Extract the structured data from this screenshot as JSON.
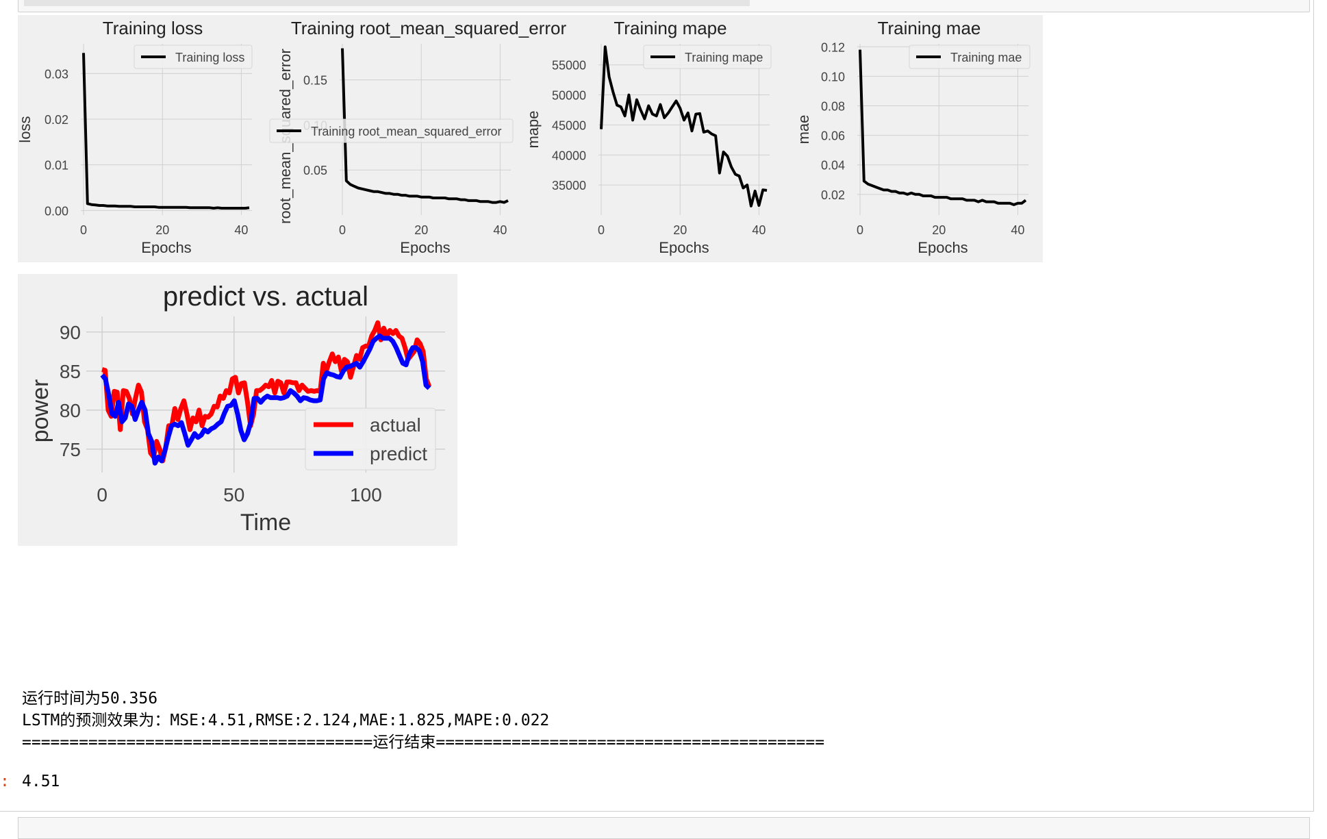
{
  "training_figure": {
    "panels": [
      {
        "title": "Training loss",
        "ylabel": "loss",
        "xlabel": "Epochs",
        "legend": "Training loss",
        "yticks": [
          0.0,
          0.01,
          0.02,
          0.03
        ],
        "ytick_labels": [
          "0.00",
          "0.01",
          "0.02",
          "0.03"
        ],
        "xticks": [
          0,
          20,
          40
        ],
        "ylim": [
          -0.001,
          0.0365
        ],
        "values": [
          0.0345,
          0.0015,
          0.0013,
          0.0012,
          0.0011,
          0.0011,
          0.001,
          0.001,
          0.001,
          0.0009,
          0.0009,
          0.0009,
          0.0009,
          0.0008,
          0.0008,
          0.0008,
          0.0008,
          0.0008,
          0.0008,
          0.0007,
          0.0007,
          0.0007,
          0.0007,
          0.0007,
          0.0007,
          0.0007,
          0.0007,
          0.0006,
          0.0006,
          0.0006,
          0.0006,
          0.0006,
          0.0006,
          0.0005,
          0.0006,
          0.0005,
          0.0005,
          0.0005,
          0.0005,
          0.0005,
          0.0005,
          0.0005,
          0.0006
        ]
      },
      {
        "title": "Training root_mean_squared_error",
        "ylabel": "root_mean_squared_error",
        "xlabel": "Epochs",
        "legend": "Training root_mean_squared_error",
        "yticks": [
          0.05,
          0.1,
          0.15
        ],
        "ytick_labels": [
          "0.05",
          "0.10",
          "0.15"
        ],
        "xticks": [
          0,
          20,
          40
        ],
        "ylim": [
          0.0,
          0.19
        ],
        "values": [
          0.185,
          0.038,
          0.034,
          0.032,
          0.03,
          0.029,
          0.028,
          0.027,
          0.026,
          0.026,
          0.025,
          0.024,
          0.024,
          0.023,
          0.023,
          0.022,
          0.022,
          0.021,
          0.021,
          0.021,
          0.02,
          0.02,
          0.02,
          0.019,
          0.019,
          0.019,
          0.019,
          0.018,
          0.018,
          0.018,
          0.017,
          0.017,
          0.016,
          0.016,
          0.016,
          0.015,
          0.015,
          0.015,
          0.014,
          0.014,
          0.015,
          0.014,
          0.016
        ]
      },
      {
        "title": "Training mape",
        "ylabel": "mape",
        "xlabel": "Epochs",
        "legend": "Training mape",
        "yticks": [
          35000,
          40000,
          45000,
          50000,
          55000
        ],
        "ytick_labels": [
          "35000",
          "40000",
          "45000",
          "50000",
          "55000"
        ],
        "xticks": [
          0,
          20,
          40
        ],
        "ylim": [
          30000,
          58500
        ],
        "values": [
          44300,
          58000,
          53000,
          50500,
          48300,
          48000,
          46500,
          50000,
          45800,
          49200,
          47500,
          46000,
          48200,
          46800,
          46500,
          48400,
          46200,
          47000,
          48000,
          49000,
          47800,
          45800,
          47000,
          44000,
          46800,
          46900,
          43800,
          44000,
          43500,
          43200,
          37000,
          40500,
          39800,
          38000,
          36800,
          36500,
          34500,
          35000,
          31500,
          34000,
          31600,
          34200,
          34100
        ]
      },
      {
        "title": "Training mae",
        "ylabel": "mae",
        "xlabel": "Epochs",
        "legend": "Training mae",
        "yticks": [
          0.02,
          0.04,
          0.06,
          0.08,
          0.1,
          0.12
        ],
        "ytick_labels": [
          "0.02",
          "0.04",
          "0.06",
          "0.08",
          "0.10",
          "0.12"
        ],
        "xticks": [
          0,
          20,
          40
        ],
        "ylim": [
          0.006,
          0.122
        ],
        "values": [
          0.118,
          0.029,
          0.027,
          0.026,
          0.025,
          0.024,
          0.023,
          0.023,
          0.022,
          0.022,
          0.021,
          0.021,
          0.02,
          0.021,
          0.02,
          0.02,
          0.019,
          0.019,
          0.019,
          0.018,
          0.018,
          0.018,
          0.018,
          0.017,
          0.017,
          0.017,
          0.017,
          0.016,
          0.016,
          0.016,
          0.015,
          0.016,
          0.015,
          0.015,
          0.015,
          0.014,
          0.014,
          0.014,
          0.014,
          0.013,
          0.014,
          0.014,
          0.016
        ]
      }
    ]
  },
  "chart_data": {
    "type": "line",
    "title": "predict vs. actual",
    "xlabel": "Time",
    "ylabel": "power",
    "xticks": [
      0,
      50,
      100
    ],
    "yticks": [
      75,
      80,
      85,
      90
    ],
    "xlim": [
      -6,
      130
    ],
    "ylim": [
      72,
      92
    ],
    "legend_position": "lower-right",
    "series": [
      {
        "name": "actual",
        "color": "#ff0000",
        "values": [
          85.2,
          85.1,
          80,
          79.2,
          82.4,
          82.3,
          77.5,
          82.5,
          82.4,
          81.5,
          79.5,
          81.5,
          83.2,
          82.3,
          78.5,
          77.5,
          74.5,
          74,
          76,
          75,
          73.5,
          75.2,
          78,
          78,
          80.2,
          78.8,
          80.2,
          81.2,
          79.5,
          77.5,
          79,
          78.5,
          80,
          78,
          79.2,
          79.1,
          79.5,
          80.5,
          80.4,
          81.8,
          81.5,
          82.5,
          82.2,
          84,
          84.2,
          82.2,
          83.4,
          83.5,
          81,
          78,
          79.5,
          82.5,
          82.5,
          82.8,
          83.2,
          83,
          83.8,
          82.2,
          83.7,
          83.5,
          82.2,
          83.6,
          83.6,
          83.5,
          83.5,
          82.5,
          83.2,
          82.8,
          82.4,
          82.5,
          82.4,
          82.5,
          82.4,
          86,
          85,
          86.2,
          87.2,
          86.2,
          86.8,
          85,
          86.5,
          86.2,
          84.2,
          85.6,
          87,
          86.5,
          88,
          88.2,
          88.2,
          89.5,
          90.2,
          91.2,
          89,
          90.5,
          89.5,
          90.2,
          89.8,
          90.2,
          89.5,
          89.2,
          88,
          86.5,
          87,
          87.5,
          89,
          88.5,
          87.5,
          84,
          83
        ],
        "x": [
          0,
          1,
          2,
          3,
          4,
          5,
          6,
          7,
          8,
          9,
          10,
          11,
          12,
          13,
          14,
          15,
          16,
          17,
          18,
          19,
          20,
          21,
          22,
          23,
          24,
          25,
          26,
          27,
          28,
          29,
          30,
          31,
          32,
          33,
          34,
          35,
          36,
          37,
          38,
          39,
          40,
          41,
          42,
          43,
          44,
          45,
          46,
          47,
          48,
          49,
          50,
          51,
          52,
          53,
          54,
          55,
          56,
          57,
          58,
          59,
          60,
          61,
          62,
          63,
          64,
          65,
          66,
          67,
          68,
          69,
          70,
          71,
          72,
          73,
          74,
          75,
          76,
          77,
          78,
          79,
          80,
          81,
          82,
          83,
          84,
          85,
          86,
          87,
          88,
          89,
          90,
          91,
          92,
          93,
          94,
          95,
          96,
          97,
          98,
          99,
          100,
          101,
          102,
          103,
          104,
          105,
          106,
          107,
          108
        ]
      },
      {
        "name": "predict",
        "color": "#0000ff",
        "values": [
          84.5,
          84,
          82,
          79.5,
          79.2,
          81,
          78.5,
          79,
          80.8,
          80.5,
          78.8,
          80,
          81,
          80,
          77,
          76,
          73.2,
          74,
          73.5,
          74.8,
          76.5,
          78,
          78.2,
          78,
          78.4,
          77,
          75.5,
          76.2,
          77,
          76.5,
          76.8,
          77.5,
          77.2,
          77.6,
          77.8,
          78.2,
          78.5,
          79.6,
          80.5,
          80.6,
          81.2,
          79.5,
          77.4,
          76.2,
          77,
          78.5,
          81.5,
          81.5,
          81,
          81.5,
          81.8,
          81.6,
          81.6,
          81.6,
          81.5,
          81.6,
          81.8,
          82.5,
          82.2,
          81.8,
          81.2,
          81.6,
          81.5,
          81.3,
          81.2,
          81.2,
          81.3,
          84,
          84.8,
          84.6,
          84.5,
          84.3,
          84.2,
          85,
          85.5,
          85.6,
          85.8,
          86,
          85.5,
          86.2,
          87,
          87.8,
          88.8,
          89.2,
          89.5,
          89.2,
          89.2,
          89.2,
          88.8,
          88,
          87,
          86,
          85.8,
          87.2,
          88,
          88,
          87.6,
          86.2,
          83.2,
          82.8
        ],
        "x": [
          0,
          1,
          2,
          3,
          4,
          5,
          6,
          7,
          8,
          9,
          10,
          11,
          12,
          13,
          14,
          15,
          16,
          17,
          18,
          19,
          20,
          21,
          22,
          23,
          24,
          25,
          26,
          27,
          28,
          29,
          30,
          31,
          32,
          33,
          34,
          35,
          36,
          37,
          38,
          39,
          40,
          41,
          42,
          43,
          44,
          45,
          46,
          47,
          48,
          49,
          50,
          51,
          52,
          53,
          54,
          55,
          56,
          57,
          58,
          59,
          60,
          61,
          62,
          63,
          64,
          65,
          66,
          67,
          68,
          69,
          70,
          71,
          72,
          73,
          74,
          75,
          76,
          77,
          78,
          79,
          80,
          81,
          82,
          83,
          84,
          85,
          86,
          87,
          88,
          89,
          90,
          91,
          92,
          93,
          94,
          95,
          96,
          97,
          98,
          99
        ]
      }
    ]
  },
  "stdout": {
    "runtime_line": "运行时间为50.356",
    "metrics_line": "LSTM的预测效果为：MSE:4.51,RMSE:2.124,MAE:1.825,MAPE:0.022",
    "end_line": "=====================================运行结束========================================="
  },
  "output": {
    "prompt": ":",
    "value": "4.51"
  }
}
